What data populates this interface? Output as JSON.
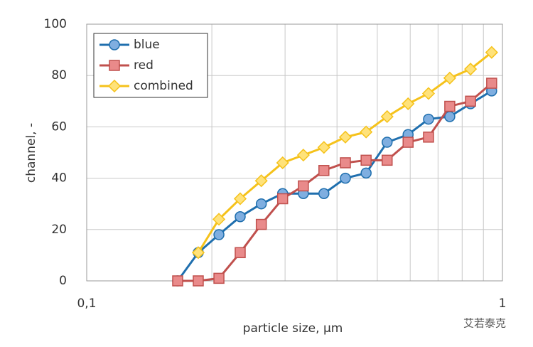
{
  "chart_data": {
    "type": "line",
    "x_label": "particle size, µm",
    "y_label": "channel, -",
    "x": [
      0.1655,
      0.1855,
      0.208,
      0.234,
      0.263,
      0.296,
      0.332,
      0.372,
      0.419,
      0.47,
      0.528,
      0.593,
      0.664,
      0.747,
      0.838,
      0.942
    ],
    "series": [
      {
        "name": "blue",
        "color": "#1f6fae",
        "marker_fill": "#7faee0",
        "marker": "circle",
        "values": [
          0,
          11,
          18,
          25,
          30,
          34,
          34,
          34,
          40,
          42,
          54,
          57,
          63,
          64,
          69,
          74
        ]
      },
      {
        "name": "red",
        "color": "#c0504d",
        "marker_fill": "#e98a8a",
        "marker": "square",
        "values": [
          0,
          0,
          1,
          11,
          22,
          32,
          37,
          43,
          46,
          47,
          47,
          54,
          56,
          68,
          70,
          77
        ]
      },
      {
        "name": "combined",
        "color": "#f5c21b",
        "marker_fill": "#ffe27a",
        "marker": "diamond",
        "values": [
          null,
          11,
          24,
          32,
          39,
          46,
          49,
          52,
          56,
          58,
          64,
          69,
          73,
          79,
          82.5,
          89
        ]
      }
    ],
    "xscale": "log",
    "xlim": [
      0.1,
      1
    ],
    "xticks": [
      {
        "value": 0.1,
        "label": "0,1"
      },
      1
    ],
    "xgrid_minor": [
      0.2,
      0.3,
      0.4,
      0.5,
      0.6,
      0.7,
      0.8,
      0.9
    ],
    "ylim": [
      0,
      100
    ],
    "yticks": [
      0,
      20,
      40,
      60,
      80,
      100
    ],
    "grid": true,
    "legend": "upper-left",
    "watermark": "艾若泰克"
  }
}
